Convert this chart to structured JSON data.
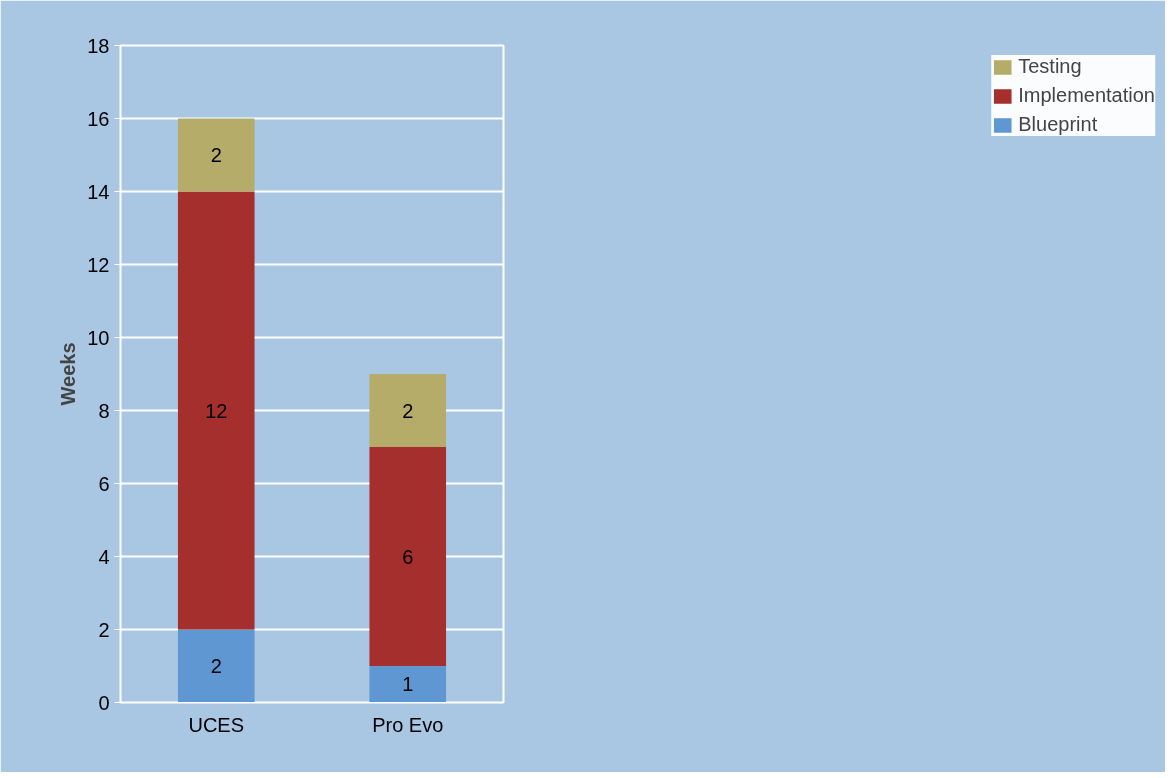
{
  "chart_data": {
    "type": "bar",
    "stacked": true,
    "ylabel": "Weeks",
    "categories": [
      "UCES",
      "Pro Evo"
    ],
    "series": [
      {
        "name": "Blueprint",
        "color": "#5f97d2",
        "values": [
          2,
          1
        ]
      },
      {
        "name": "Implementation",
        "color": "#a52f2c",
        "values": [
          12,
          6
        ]
      },
      {
        "name": "Testing",
        "color": "#b5ac6a",
        "values": [
          2,
          2
        ]
      }
    ],
    "ylim": [
      0,
      18
    ],
    "yticks": [
      0,
      2,
      4,
      6,
      8,
      10,
      12,
      14,
      16,
      18
    ],
    "grid": "y",
    "legend": "right",
    "data_labels": true
  }
}
